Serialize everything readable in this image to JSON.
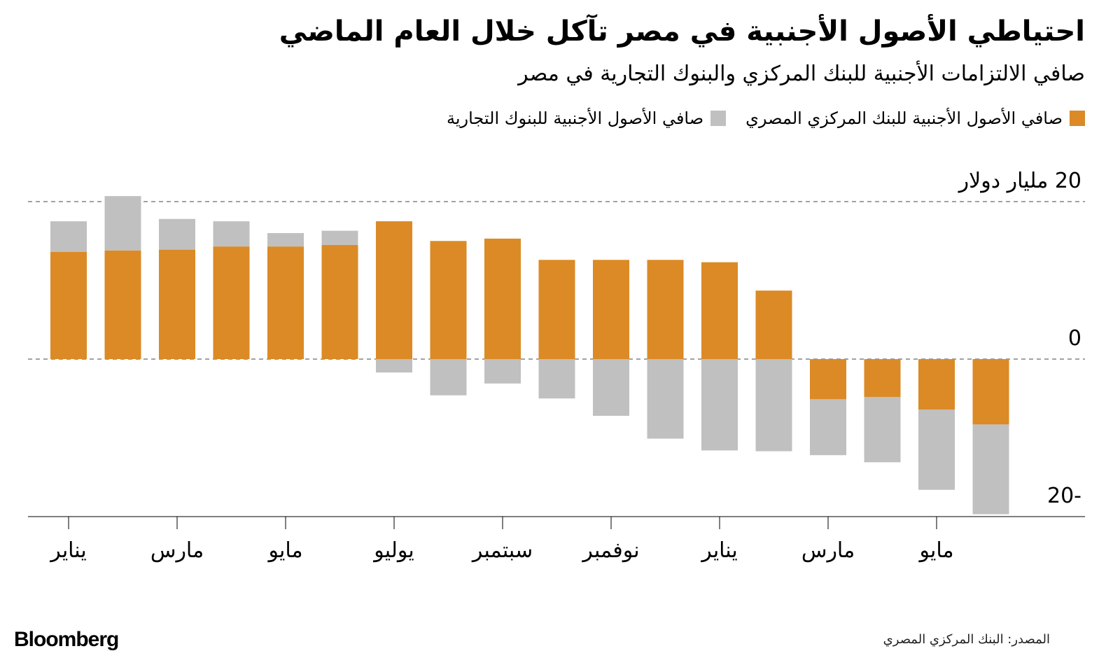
{
  "chart_data": {
    "type": "stacked-bar",
    "title": "احتياطي الأصول الأجنبية في مصر تآكل خلال العام الماضي",
    "subtitle": "صافي الالتزامات الأجنبية للبنك المركزي والبنوك التجارية في مصر",
    "categories": [
      "يناير",
      null,
      "مارس",
      null,
      "مايو",
      null,
      "يوليو",
      null,
      "سبتمبر",
      null,
      "نوفمبر",
      null,
      "يناير",
      null,
      "مارس",
      null,
      "مايو",
      null
    ],
    "series": [
      {
        "name": "صافي الأصول الأجنبية للبنك المركزي المصري",
        "color": "#db8a26",
        "values": [
          13.6,
          13.8,
          13.9,
          14.3,
          14.3,
          14.5,
          17.5,
          15.0,
          15.3,
          12.6,
          12.6,
          12.6,
          12.3,
          8.7,
          -5.1,
          -4.8,
          -6.4,
          -8.3
        ]
      },
      {
        "name": "صافي الأصول الأجنبية للبنوك التجارية",
        "color": "#c0c0c0",
        "values": [
          3.9,
          6.9,
          3.9,
          3.2,
          1.7,
          1.8,
          -1.7,
          -4.6,
          -3.1,
          -5.0,
          -7.2,
          -10.1,
          -11.6,
          -11.7,
          -7.1,
          -8.3,
          -10.2,
          -11.4
        ]
      }
    ],
    "ylim": [
      -20,
      20
    ],
    "yticks": [
      {
        "value": 20,
        "label": "20 مليار دولار"
      },
      0,
      -20
    ],
    "grid": true,
    "source": "المصدر: البنك المركزي المصري",
    "brand": "Bloomberg"
  }
}
